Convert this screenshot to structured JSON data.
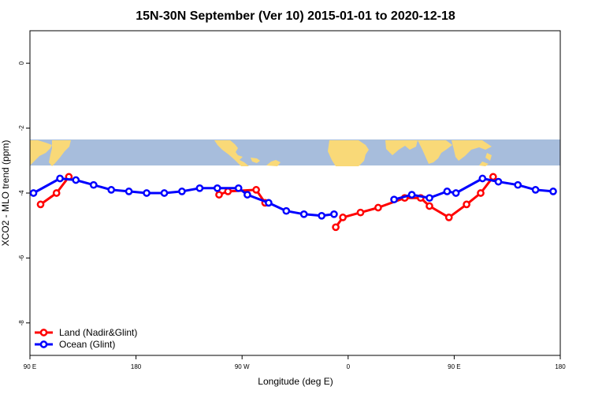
{
  "chart_data": {
    "type": "line",
    "title": "15N-30N September (Ver 10)   2015-01-01 to 2020-12-18",
    "xlabel": "Longitude (deg E)",
    "ylabel": "XCO2 - MLO trend (ppm)",
    "xlim": [
      90,
      390
    ],
    "ylim": [
      -9,
      1
    ],
    "x_ticks": [
      {
        "value": 90,
        "label": "90 E"
      },
      {
        "value": 150,
        "label": "180"
      },
      {
        "value": 210,
        "label": "90 W"
      },
      {
        "value": 270,
        "label": "0"
      },
      {
        "value": 330,
        "label": "90 E"
      },
      {
        "value": 390,
        "label": "180"
      }
    ],
    "y_ticks": [
      {
        "value": 0,
        "label": "0"
      },
      {
        "value": -2,
        "label": "-2"
      },
      {
        "value": -4,
        "label": "-4"
      },
      {
        "value": -6,
        "label": "-6"
      },
      {
        "value": -8,
        "label": "-8"
      }
    ],
    "grid": false,
    "legend_position": "bottom-left",
    "map_strip": {
      "y_top": -2.35,
      "y_bottom": -3.15,
      "ocean_color": "#a7bddc",
      "land_color": "#f9d978"
    },
    "series": [
      {
        "name": "Land (Nadir&Glint)",
        "color": "#ff0000",
        "segments": [
          [
            [
              96,
              -4.35
            ],
            [
              105,
              -4.0
            ],
            [
              112,
              -3.5
            ]
          ],
          [
            [
              197,
              -4.05
            ],
            [
              202,
              -3.95
            ],
            [
              218,
              -3.9
            ],
            [
              223,
              -4.3
            ]
          ],
          [
            [
              263,
              -5.05
            ],
            [
              267,
              -4.75
            ],
            [
              277,
              -4.6
            ],
            [
              287,
              -4.45
            ],
            [
              302,
              -4.15
            ],
            [
              311,
              -4.15
            ],
            [
              316,
              -4.4
            ],
            [
              327,
              -4.75
            ],
            [
              337,
              -4.35
            ],
            [
              345,
              -4.0
            ],
            [
              352,
              -3.5
            ]
          ]
        ]
      },
      {
        "name": "Ocean (Glint)",
        "color": "#0000ff",
        "segments": [
          [
            [
              92,
              -4.0
            ],
            [
              107,
              -3.55
            ],
            [
              116,
              -3.6
            ],
            [
              126,
              -3.75
            ],
            [
              136,
              -3.9
            ],
            [
              146,
              -3.95
            ],
            [
              156,
              -4.0
            ],
            [
              166,
              -4.0
            ],
            [
              176,
              -3.95
            ],
            [
              186,
              -3.85
            ],
            [
              196,
              -3.85
            ],
            [
              208,
              -3.85
            ],
            [
              213,
              -4.05
            ],
            [
              225,
              -4.3
            ],
            [
              235,
              -4.55
            ],
            [
              245,
              -4.65
            ],
            [
              255,
              -4.7
            ],
            [
              262,
              -4.65
            ]
          ],
          [
            [
              296,
              -4.2
            ],
            [
              306,
              -4.05
            ],
            [
              316,
              -4.15
            ],
            [
              326,
              -3.95
            ],
            [
              331,
              -4.0
            ],
            [
              346,
              -3.55
            ],
            [
              355,
              -3.65
            ],
            [
              366,
              -3.75
            ],
            [
              376,
              -3.9
            ],
            [
              386,
              -3.95
            ]
          ]
        ]
      }
    ]
  }
}
